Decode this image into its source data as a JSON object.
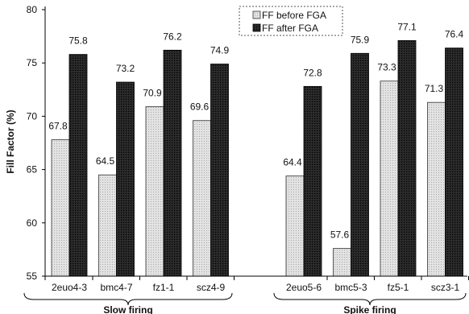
{
  "chart_data": {
    "type": "bar",
    "ylabel": "Fill Factor (%)",
    "ylim": [
      55,
      80
    ],
    "yticks": [
      55,
      60,
      65,
      70,
      75,
      80
    ],
    "categories": [
      "2euo4-3",
      "bmc4-7",
      "fz1-1",
      "scz4-9",
      "2euo5-6",
      "bmc5-3",
      "fz5-1",
      "scz3-1"
    ],
    "groups": [
      {
        "label": "Slow firing",
        "categories": [
          "2euo4-3",
          "bmc4-7",
          "fz1-1",
          "scz4-9"
        ]
      },
      {
        "label": "Spike firing",
        "categories": [
          "2euo5-6",
          "bmc5-3",
          "fz5-1",
          "scz3-1"
        ]
      }
    ],
    "series": [
      {
        "name": "FF before FGA",
        "color": "#d2d2d2",
        "values": [
          67.8,
          64.5,
          70.9,
          69.6,
          64.4,
          57.6,
          73.3,
          71.3
        ],
        "labels": [
          "67.8",
          "64.5",
          "70.9",
          "69.6",
          "64.4",
          "57.6",
          "73.3",
          "71.3"
        ]
      },
      {
        "name": "FF after FGA",
        "color": "#1c1c1c",
        "values": [
          75.8,
          73.2,
          76.2,
          74.9,
          72.8,
          75.9,
          77.1,
          76.4
        ],
        "labels": [
          "75.8",
          "73.2",
          "76.2",
          "74.9",
          "72.8",
          "75.9",
          "77.1",
          "76.4"
        ]
      }
    ],
    "legend_position": "top-center",
    "grid": false
  }
}
